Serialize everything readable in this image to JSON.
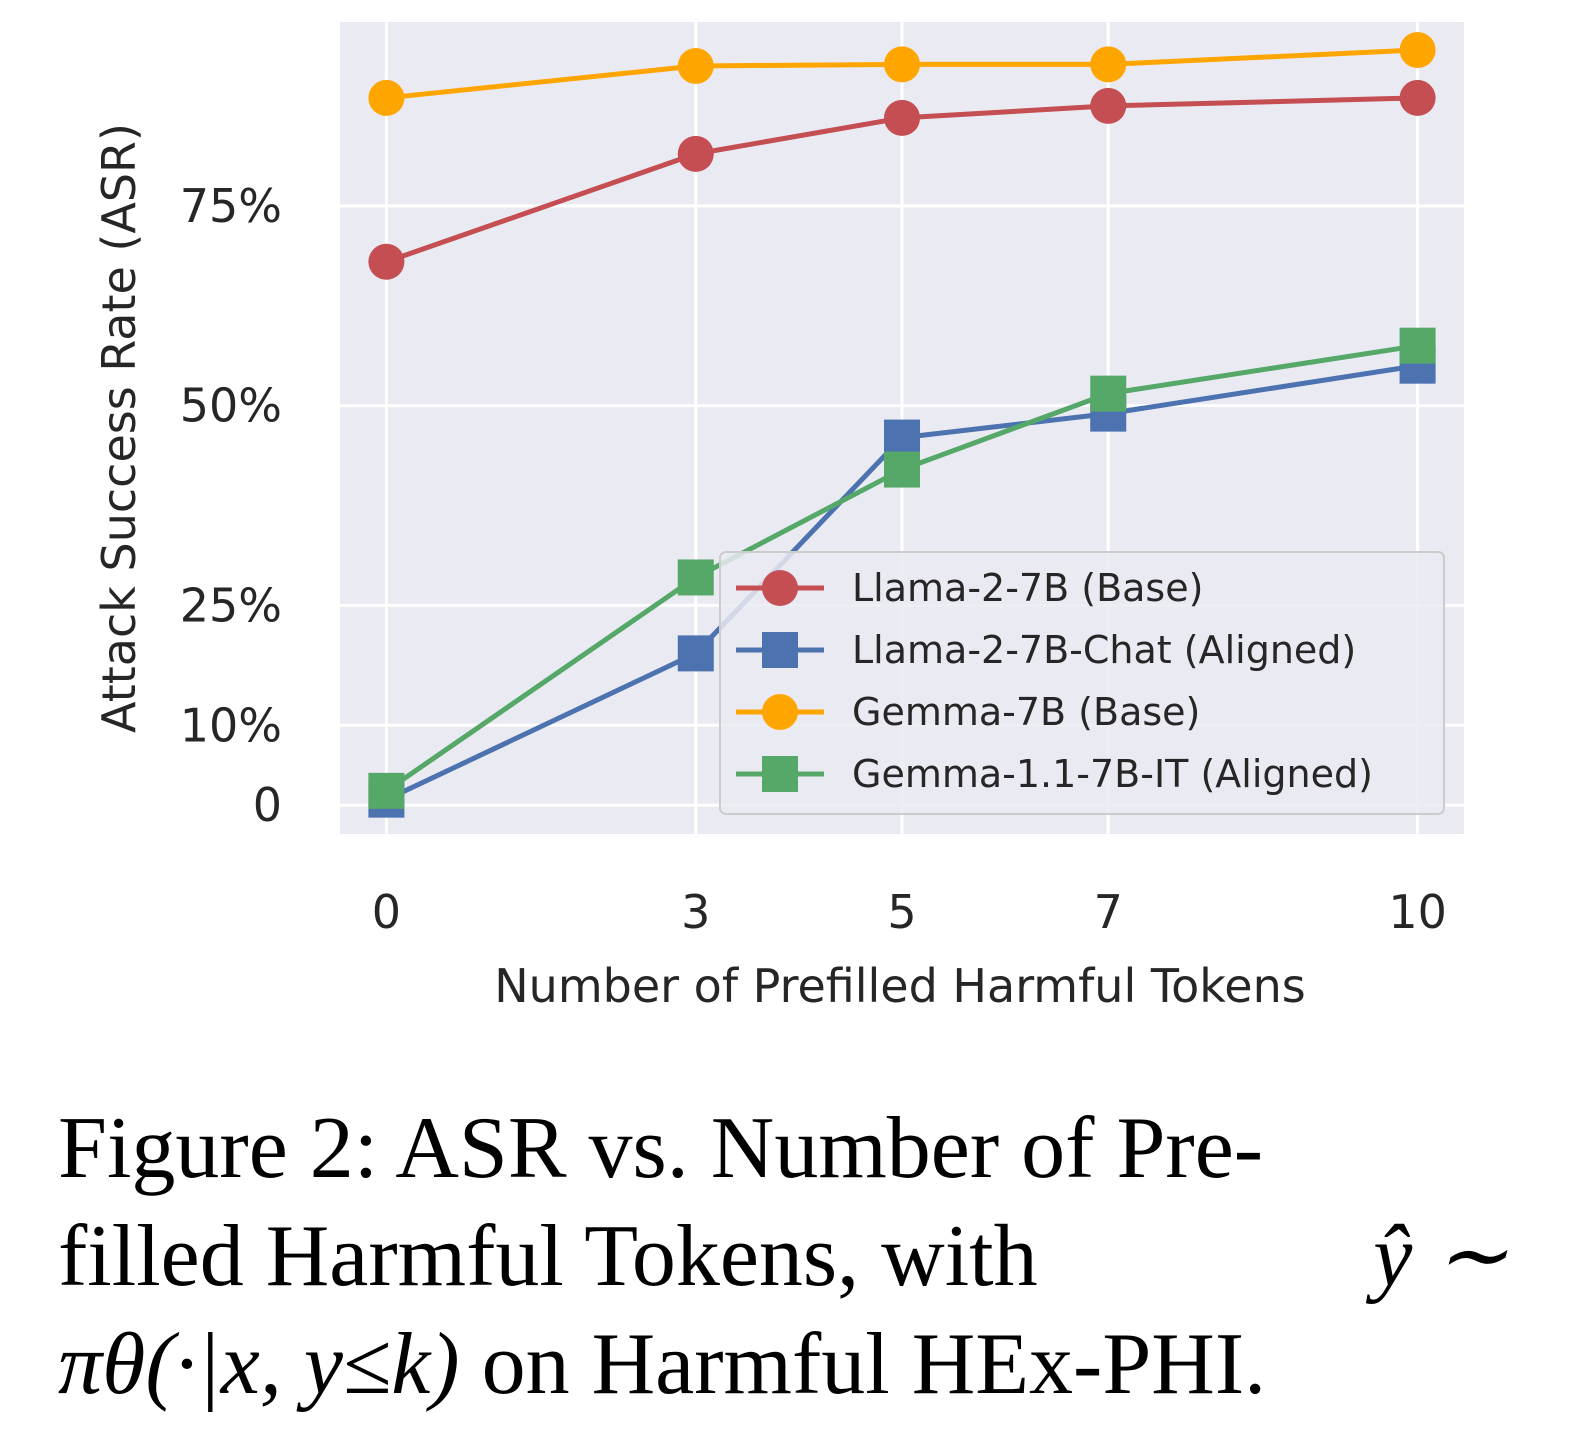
{
  "chart_data": {
    "type": "line",
    "title": "",
    "xlabel": "Number of Prefilled Harmful Tokens",
    "ylabel": "Attack Success Rate (ASR)",
    "x": [
      0,
      3,
      5,
      7,
      10
    ],
    "xticks": [
      "0",
      "3",
      "5",
      "7",
      "10"
    ],
    "yticks": [
      {
        "value": 0,
        "label": "0"
      },
      {
        "value": 10,
        "label": "10%"
      },
      {
        "value": 25,
        "label": "25%"
      },
      {
        "value": 50,
        "label": "50%"
      },
      {
        "value": 75,
        "label": "75%"
      }
    ],
    "xlim": [
      -0.45,
      10.45
    ],
    "ylim": [
      -3.6,
      98
    ],
    "grid": true,
    "legend_position": "lower-right",
    "series": [
      {
        "name": "Llama-2-7B (Base)",
        "color": "#c44e52",
        "marker": "circle",
        "values": [
          68,
          81.5,
          86,
          87.5,
          88.5
        ]
      },
      {
        "name": "Llama-2-7B-Chat (Aligned)",
        "color": "#4c72b0",
        "marker": "square",
        "values": [
          0.7,
          19,
          46,
          49,
          55
        ]
      },
      {
        "name": "Gemma-7B (Base)",
        "color": "#ffa500",
        "marker": "circle",
        "values": [
          88.5,
          92.5,
          92.7,
          92.7,
          94.5
        ]
      },
      {
        "name": "Gemma-1.1-7B-IT (Aligned)",
        "color": "#55a868",
        "marker": "square",
        "values": [
          1.8,
          28.5,
          42,
          51.5,
          57.5
        ]
      }
    ]
  },
  "caption": {
    "line1": "Figure 2:  ASR vs.  Number of Pre-",
    "line2_text": "filled  Harmful  Tokens,  with",
    "line2_math": "ŷ ∼",
    "line3_math": "πθ(·|x, y≤k)",
    "line3_text": "on Harmful HEx-PHI."
  }
}
